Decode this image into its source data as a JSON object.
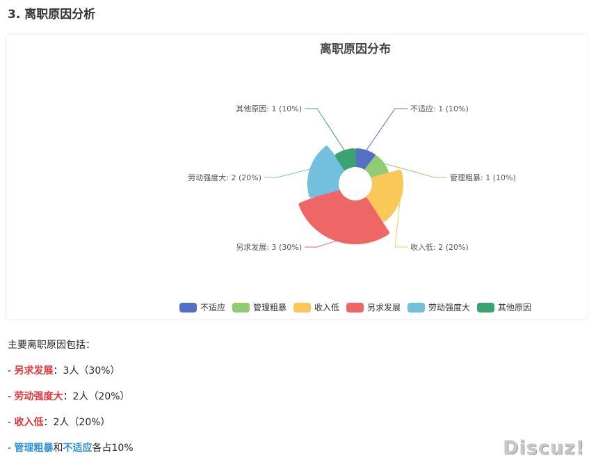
{
  "section_title": "3. 离职原因分析",
  "chart_data": {
    "type": "pie",
    "subtype": "rose",
    "title": "离职原因分布",
    "label_format": "{name}: {value} ({percent}%)",
    "slices": [
      {
        "name": "不适应",
        "value": 1,
        "percent": 10,
        "color": "#5470c6",
        "label": "不适应: 1 (10%)"
      },
      {
        "name": "管理粗暴",
        "value": 1,
        "percent": 10,
        "color": "#91cc75",
        "label": "管理粗暴: 1 (10%)"
      },
      {
        "name": "收入低",
        "value": 2,
        "percent": 20,
        "color": "#fac858",
        "label": "收入低: 2 (20%)"
      },
      {
        "name": "另求发展",
        "value": 3,
        "percent": 30,
        "color": "#ee6666",
        "label": "另求发展: 3 (30%)"
      },
      {
        "name": "劳动强度大",
        "value": 2,
        "percent": 20,
        "color": "#73c0de",
        "label": "劳动强度大: 2 (20%)"
      },
      {
        "name": "其他原因",
        "value": 1,
        "percent": 10,
        "color": "#3ba272",
        "label": "其他原因: 1 (10%)"
      }
    ],
    "legend": [
      "不适应",
      "管理粗暴",
      "收入低",
      "另求发展",
      "劳动强度大",
      "其他原因"
    ],
    "legend_position": "bottom"
  },
  "summary": {
    "intro": "主要离职原因包括：",
    "items": [
      {
        "prefix": "- ",
        "highlight": "另求发展",
        "text": "：3人（30%）"
      },
      {
        "prefix": "- ",
        "highlight": "劳动强度大",
        "text": "：2人（20%）"
      },
      {
        "prefix": "- ",
        "highlight": "收入低",
        "text": "：2人（20%）"
      }
    ],
    "last": {
      "prefix": "- ",
      "highlight1": "管理粗暴",
      "middle": "和",
      "highlight2": "不适应",
      "suffix": "各占10%"
    }
  },
  "watermark": "Discuz!"
}
